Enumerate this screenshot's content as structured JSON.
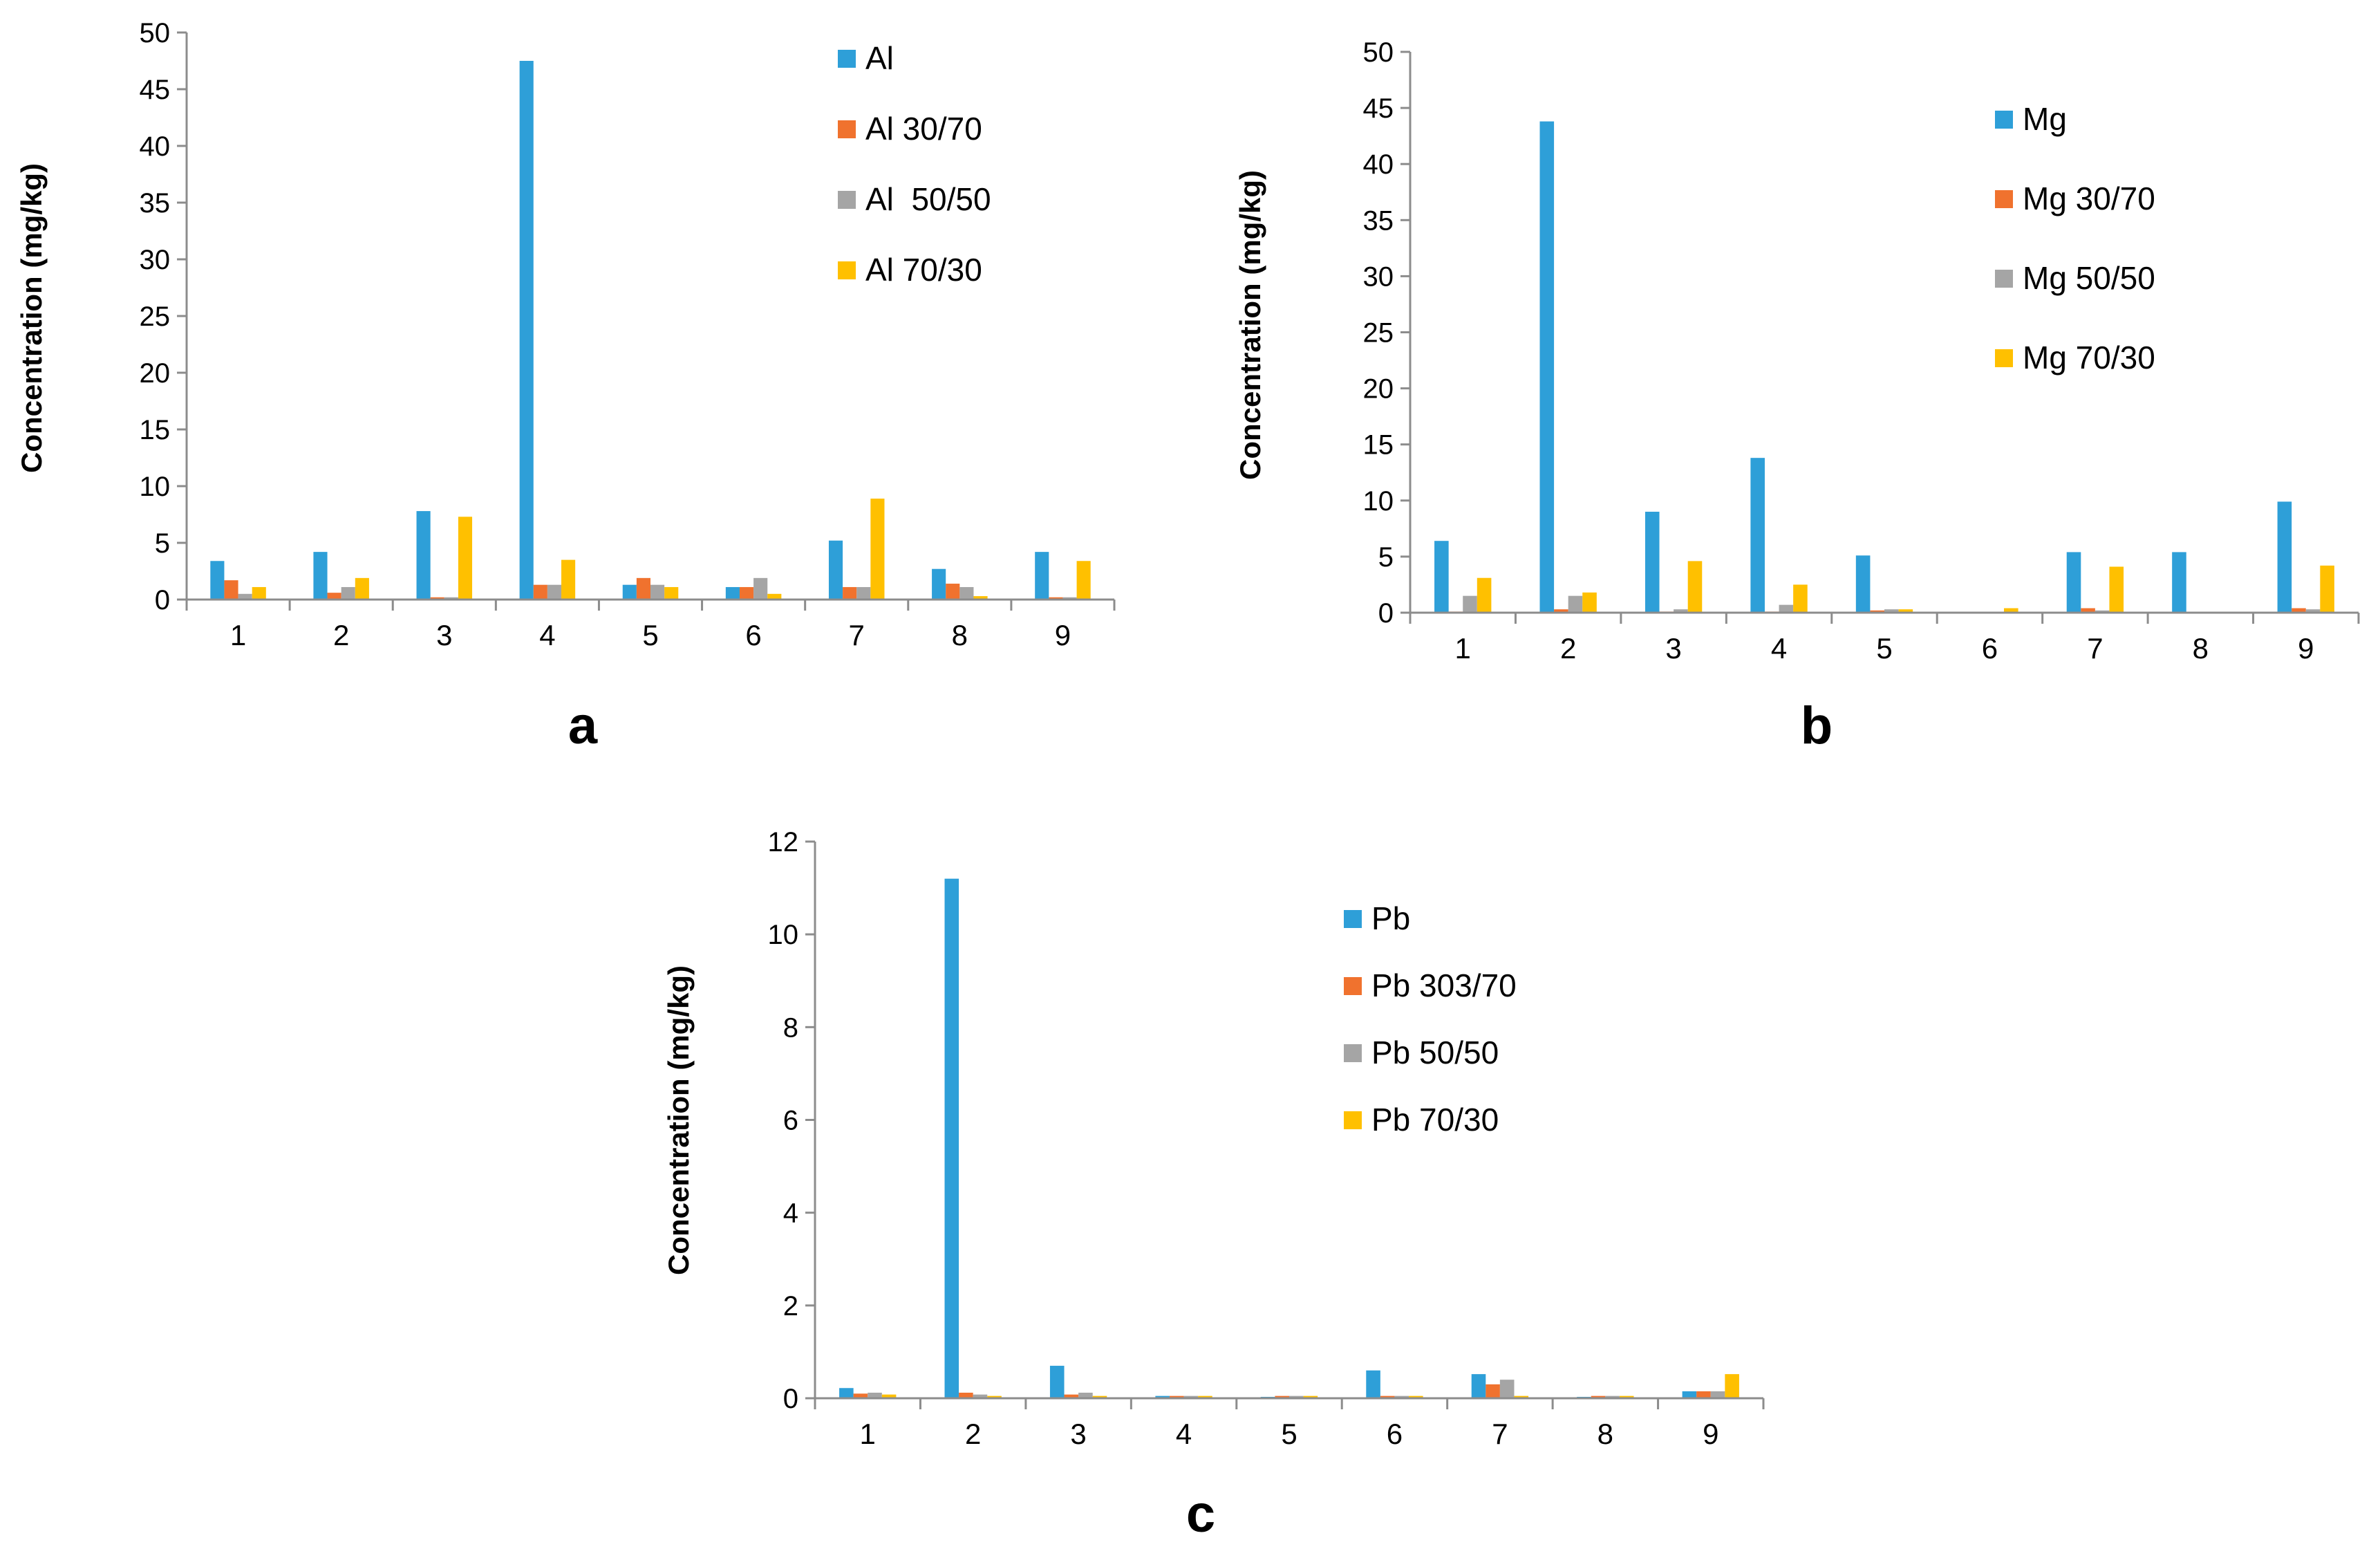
{
  "figure": {
    "panels": [
      "a",
      "b",
      "c"
    ]
  },
  "colors": {
    "series": [
      "#2E9FD8",
      "#F0722E",
      "#A5A5A5",
      "#FFC000"
    ],
    "axis": "#8C8C8C",
    "text": "#000000"
  },
  "chart_data": [
    {
      "id": "a",
      "type": "bar",
      "panel_label": "a",
      "ylabel": "Concentration  (mg/kg)",
      "xlabel": "",
      "categories": [
        "1",
        "2",
        "3",
        "4",
        "5",
        "6",
        "7",
        "8",
        "9"
      ],
      "ylim": [
        0,
        50
      ],
      "yticks": [
        "0",
        "5",
        "10",
        "15",
        "20",
        "25",
        "30",
        "35",
        "40",
        "45",
        "50"
      ],
      "legend_position": "top-right",
      "series": [
        {
          "name": "Al",
          "values": [
            3.4,
            4.2,
            7.8,
            47.5,
            1.3,
            1.1,
            5.2,
            2.7,
            4.2
          ]
        },
        {
          "name": "Al 30/70",
          "values": [
            1.7,
            0.6,
            0.2,
            1.3,
            1.9,
            1.1,
            1.1,
            1.4,
            0.2
          ]
        },
        {
          "name": "Al  50/50",
          "values": [
            0.5,
            1.1,
            0.2,
            1.3,
            1.3,
            1.9,
            1.1,
            1.1,
            0.2
          ]
        },
        {
          "name": "Al 70/30",
          "values": [
            1.1,
            1.9,
            7.3,
            3.5,
            1.1,
            0.5,
            8.9,
            0.3,
            3.4
          ]
        }
      ]
    },
    {
      "id": "b",
      "type": "bar",
      "panel_label": "b",
      "ylabel": "Concentration  (mg/kg)",
      "xlabel": "",
      "categories": [
        "1",
        "2",
        "3",
        "4",
        "5",
        "6",
        "7",
        "8",
        "9"
      ],
      "ylim": [
        0,
        50
      ],
      "yticks": [
        "0",
        "5",
        "10",
        "15",
        "20",
        "25",
        "30",
        "35",
        "40",
        "45",
        "50"
      ],
      "legend_position": "top-right",
      "series": [
        {
          "name": "Mg",
          "values": [
            6.4,
            43.8,
            9.0,
            13.8,
            5.1,
            0.0,
            5.4,
            5.4,
            9.9
          ]
        },
        {
          "name": "Mg 30/70",
          "values": [
            0.1,
            0.3,
            0.1,
            0.1,
            0.2,
            0.0,
            0.4,
            0.0,
            0.4
          ]
        },
        {
          "name": "Mg 50/50",
          "values": [
            1.5,
            1.5,
            0.3,
            0.7,
            0.3,
            0.0,
            0.2,
            0.0,
            0.3
          ]
        },
        {
          "name": "Mg 70/30",
          "values": [
            3.1,
            1.8,
            4.6,
            2.5,
            0.3,
            0.4,
            4.1,
            0.0,
            4.2
          ]
        }
      ]
    },
    {
      "id": "c",
      "type": "bar",
      "panel_label": "c",
      "ylabel": "Concentration  (mg/kg)",
      "xlabel": "",
      "categories": [
        "1",
        "2",
        "3",
        "4",
        "5",
        "6",
        "7",
        "8",
        "9"
      ],
      "ylim": [
        0,
        12
      ],
      "yticks": [
        "0",
        "2",
        "4",
        "6",
        "8",
        "10",
        "12"
      ],
      "legend_position": "top-right",
      "series": [
        {
          "name": "Pb",
          "values": [
            0.22,
            11.2,
            0.7,
            0.05,
            0.03,
            0.6,
            0.52,
            0.03,
            0.15
          ]
        },
        {
          "name": "Pb 303/70",
          "values": [
            0.1,
            0.12,
            0.08,
            0.05,
            0.05,
            0.05,
            0.3,
            0.05,
            0.15
          ]
        },
        {
          "name": "Pb 50/50",
          "values": [
            0.12,
            0.08,
            0.12,
            0.05,
            0.05,
            0.05,
            0.4,
            0.05,
            0.15
          ]
        },
        {
          "name": "Pb 70/30",
          "values": [
            0.08,
            0.05,
            0.05,
            0.05,
            0.05,
            0.05,
            0.05,
            0.05,
            0.52
          ]
        }
      ]
    }
  ]
}
